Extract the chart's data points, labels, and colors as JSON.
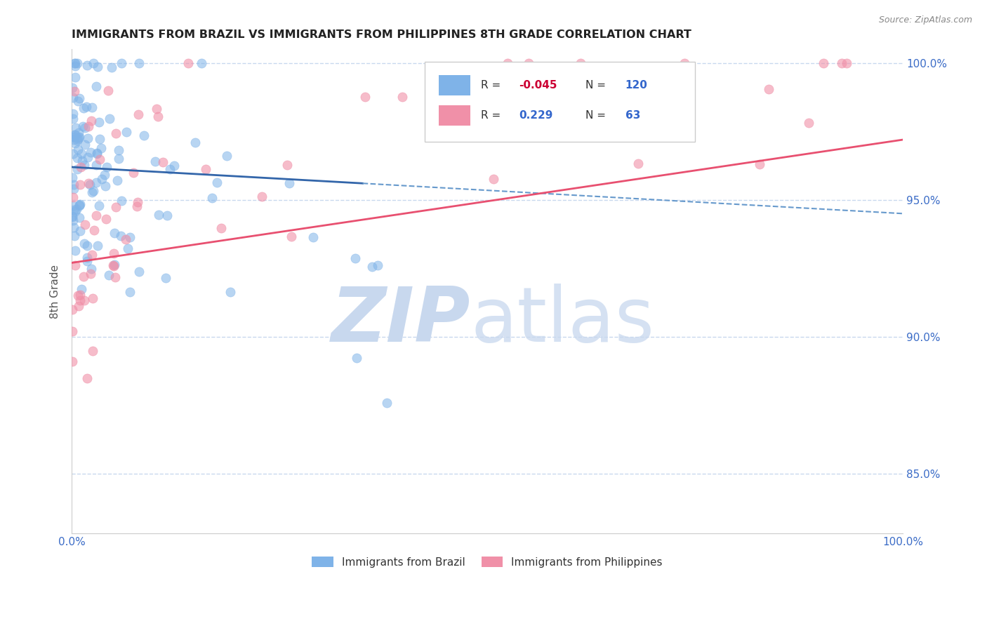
{
  "title": "IMMIGRANTS FROM BRAZIL VS IMMIGRANTS FROM PHILIPPINES 8TH GRADE CORRELATION CHART",
  "source_text": "Source: ZipAtlas.com",
  "ylabel": "8th Grade",
  "xlim": [
    0.0,
    1.0
  ],
  "ylim": [
    0.828,
    1.005
  ],
  "yticks": [
    0.85,
    0.9,
    0.95,
    1.0
  ],
  "ytick_labels": [
    "85.0%",
    "90.0%",
    "95.0%",
    "100.0%"
  ],
  "xticks": [
    0.0,
    1.0
  ],
  "xtick_labels": [
    "0.0%",
    "100.0%"
  ],
  "brazil_R": -0.045,
  "brazil_N": 120,
  "philippines_R": 0.229,
  "philippines_N": 63,
  "brazil_color": "#7fb3e8",
  "philippines_color": "#f090a8",
  "brazil_trend_color": "#3366aa",
  "philippines_trend_color": "#e85070",
  "brazil_dashed_color": "#6699cc",
  "title_color": "#222222",
  "axis_label_color": "#555555",
  "tick_color": "#3b6cc7",
  "watermark_zip_color": "#c8d8ee",
  "watermark_atlas_color": "#c8d8ee",
  "background_color": "#ffffff",
  "grid_color": "#c8d8ee",
  "legend_box_color": "#e8eef8",
  "legend_R_neg_color": "#cc0033",
  "legend_R_pos_color": "#3366cc",
  "legend_N_color": "#3366cc",
  "brazil_trend_start_x": 0.0,
  "brazil_trend_start_y": 0.962,
  "brazil_trend_end_x": 1.0,
  "brazil_trend_end_y": 0.945,
  "philippines_trend_start_x": 0.0,
  "philippines_trend_start_y": 0.927,
  "philippines_trend_end_x": 1.0,
  "philippines_trend_end_y": 0.972
}
